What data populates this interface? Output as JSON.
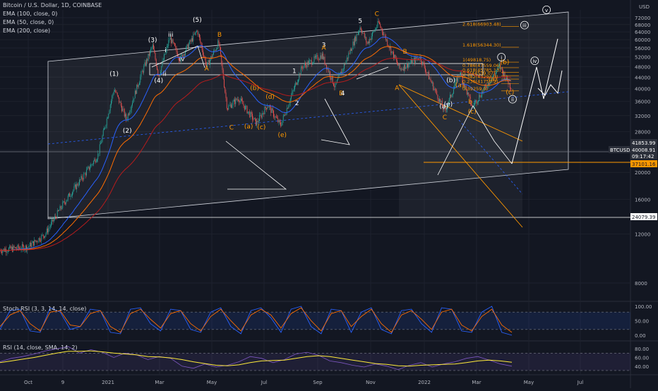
{
  "header": {
    "symbol_line": "Bitcoin / U.S. Dollar, 1D, COINBASE",
    "indicators": [
      "EMA (100, close, 0)",
      "EMA (50, close, 0)",
      "EMA (200, close)"
    ]
  },
  "colors": {
    "background": "#131722",
    "grid": "#1e222d",
    "axis_text": "#b2b5be",
    "up_candle": "#26a69a",
    "down_candle": "#ef5350",
    "ema50": "#2962ff",
    "ema100": "#ff6d00",
    "ema200": "#b71c1c",
    "wave_orange": "#ff9800",
    "wave_white": "#ffffff",
    "stoch_k": "#2962ff",
    "stoch_d": "#ff6d00",
    "rsi_line": "#7e57c2",
    "rsi_sma": "#ffeb3b"
  },
  "chart_data": [
    {
      "type": "candlestick",
      "series_name": "BTCUSD",
      "y_axis_unit": "USD",
      "y_log_scale": true,
      "y_ticks": [
        72000,
        68000,
        64000,
        60000,
        56000,
        52000,
        48000,
        44000,
        40000,
        36000,
        32000,
        28000,
        24000,
        20000,
        16000,
        12000,
        8000
      ],
      "x_tick_labels": [
        "Oct",
        "9",
        "2021",
        "Mar",
        "May",
        "Jul",
        "Sep",
        "Nov",
        "2022",
        "Mar",
        "May",
        "Jul"
      ],
      "price_path": [
        [
          "2020-09-01",
          10500
        ],
        [
          "2020-10-01",
          10800
        ],
        [
          "2020-10-20",
          12000
        ],
        [
          "2020-11-10",
          15500
        ],
        [
          "2020-12-01",
          19000
        ],
        [
          "2020-12-20",
          23000
        ],
        [
          "2021-01-08",
          40000
        ],
        [
          "2021-01-22",
          31000
        ],
        [
          "2021-02-08",
          45000
        ],
        [
          "2021-02-21",
          57000
        ],
        [
          "2021-02-28",
          44500
        ],
        [
          "2021-03-13",
          61000
        ],
        [
          "2021-03-25",
          51000
        ],
        [
          "2021-04-14",
          64800
        ],
        [
          "2021-04-25",
          48000
        ],
        [
          "2021-05-09",
          58800
        ],
        [
          "2021-05-19",
          34000
        ],
        [
          "2021-06-01",
          37000
        ],
        [
          "2021-06-22",
          30000
        ],
        [
          "2021-07-05",
          35000
        ],
        [
          "2021-07-20",
          29500
        ],
        [
          "2021-08-14",
          48000
        ],
        [
          "2021-09-06",
          52800
        ],
        [
          "2021-09-21",
          40500
        ],
        [
          "2021-10-20",
          66900
        ],
        [
          "2021-10-28",
          58000
        ],
        [
          "2021-11-10",
          69000
        ],
        [
          "2021-12-04",
          47000
        ],
        [
          "2021-12-27",
          51900
        ],
        [
          "2022-01-24",
          33000
        ],
        [
          "2022-02-10",
          45800
        ],
        [
          "2022-02-24",
          34400
        ],
        [
          "2022-03-28",
          48200
        ],
        [
          "2022-04-11",
          40008
        ]
      ],
      "price_labels": [
        {
          "value": "41853.99",
          "color": "#2a2e39"
        },
        {
          "value": "40008.91",
          "color": "#2a2e39"
        },
        {
          "value": "BTCUSD",
          "color": "#2a2e39"
        },
        {
          "value": "09:17:42",
          "color": "#2a2e39"
        },
        {
          "value": "37101.16",
          "color": "#ff9800"
        },
        {
          "value": "24079.39",
          "color": "#ffffff"
        }
      ],
      "wave_labels": [
        {
          "text": "(1)",
          "date": "2021-01-08",
          "price": 44500,
          "color": "#ffffff"
        },
        {
          "text": "(2)",
          "date": "2021-01-23",
          "price": 27800,
          "color": "#ffffff"
        },
        {
          "text": "(3)",
          "date": "2021-02-21",
          "price": 58800,
          "color": "#ffffff"
        },
        {
          "text": "(4)",
          "date": "2021-02-28",
          "price": 42000,
          "color": "#ffffff"
        },
        {
          "text": "(5)",
          "date": "2021-04-14",
          "price": 69500,
          "color": "#ffffff"
        },
        {
          "text": "iii",
          "date": "2021-03-14",
          "price": 61500,
          "color": "#ffffff"
        },
        {
          "text": "i",
          "date": "2021-03-08",
          "price": 54000,
          "color": "#ffffff"
        },
        {
          "text": "ii",
          "date": "2021-03-07",
          "price": 44500,
          "color": "#ffffff"
        },
        {
          "text": "iv",
          "date": "2021-03-27",
          "price": 50300,
          "color": "#ffffff"
        },
        {
          "text": "B",
          "date": "2021-05-10",
          "price": 61500,
          "color": "#ff9800"
        },
        {
          "text": "A",
          "date": "2021-04-25",
          "price": 46500,
          "color": "#ff9800"
        },
        {
          "text": "C",
          "date": "2021-05-24",
          "price": 28500,
          "color": "#ff9800"
        },
        {
          "text": "(a)",
          "date": "2021-06-13",
          "price": 28800,
          "color": "#ff9800"
        },
        {
          "text": "(b)",
          "date": "2021-06-20",
          "price": 39500,
          "color": "#ff9800"
        },
        {
          "text": "(c)",
          "date": "2021-06-28",
          "price": 28600,
          "color": "#ff9800"
        },
        {
          "text": "(d)",
          "date": "2021-07-08",
          "price": 36800,
          "color": "#ff9800"
        },
        {
          "text": "(e)",
          "date": "2021-07-22",
          "price": 26800,
          "color": "#ff9800"
        },
        {
          "text": "1",
          "date": "2021-08-05",
          "price": 45500,
          "color": "#ffffff"
        },
        {
          "text": "2",
          "date": "2021-08-08",
          "price": 34900,
          "color": "#ffffff"
        },
        {
          "text": "3",
          "date": "2021-09-08",
          "price": 56500,
          "color": "#ffffff"
        },
        {
          "text": "A",
          "date": "2021-09-08",
          "price": 55200,
          "color": "#ff9800"
        },
        {
          "text": "B",
          "date": "2021-09-28",
          "price": 37900,
          "color": "#ff9800"
        },
        {
          "text": "4",
          "date": "2021-09-30",
          "price": 37900,
          "color": "#ffffff"
        },
        {
          "text": "5",
          "date": "2021-10-20",
          "price": 69000,
          "color": "#ffffff"
        },
        {
          "text": "C",
          "date": "2021-11-08",
          "price": 73000,
          "color": "#ff9800"
        },
        {
          "text": "B",
          "date": "2021-12-10",
          "price": 53500,
          "color": "#ff9800"
        },
        {
          "text": "A",
          "date": "2021-12-01",
          "price": 39500,
          "color": "#ff9800"
        },
        {
          "text": "C",
          "date": "2022-01-24",
          "price": 31000,
          "color": "#ff9800"
        },
        {
          "text": "(a)",
          "date": "2022-01-23",
          "price": 34000,
          "color": "#ffffff"
        },
        {
          "text": "(e)",
          "date": "2022-01-28",
          "price": 34600,
          "color": "#ffffff"
        },
        {
          "text": "(a)",
          "date": "2022-02-10",
          "price": 40500,
          "color": "#ff9800"
        },
        {
          "text": "(b)",
          "date": "2022-01-31",
          "price": 42200,
          "color": "#ffffff"
        },
        {
          "text": "b",
          "date": "2022-02-22",
          "price": 35300,
          "color": "#ff9800"
        },
        {
          "text": "(c)",
          "date": "2022-02-24",
          "price": 32500,
          "color": "#ff9800"
        },
        {
          "text": "(a)",
          "date": "2022-03-20",
          "price": 42500,
          "color": "#ff9800"
        },
        {
          "text": "(c)",
          "date": "2022-04-09",
          "price": 38200,
          "color": "#ff9800"
        },
        {
          "text": "(b)",
          "date": "2022-04-03",
          "price": 49000,
          "color": "#ff9800"
        },
        {
          "text": "i",
          "date": "2022-03-30",
          "price": 51000,
          "color": "#ffffff",
          "circled": true
        },
        {
          "text": "ii",
          "date": "2022-04-12",
          "price": 36000,
          "color": "#ffffff",
          "circled": true
        },
        {
          "text": "iii",
          "date": "2022-04-26",
          "price": 66500,
          "color": "#ffffff",
          "circled": true
        },
        {
          "text": "iv",
          "date": "2022-05-08",
          "price": 49500,
          "color": "#ffffff",
          "circled": true
        },
        {
          "text": "v",
          "date": "2022-05-22",
          "price": 75500,
          "color": "#ffffff",
          "circled": true
        }
      ],
      "fib_levels": [
        {
          "label": "2.618(66903.48)",
          "price": 66903
        },
        {
          "label": "1.618(56344.30)",
          "price": 56344
        },
        {
          "label": "1(49818.75)",
          "price": 49819
        },
        {
          "label": "0.786(47559.06)",
          "price": 47559
        },
        {
          "label": "0.618(45785.13)",
          "price": 45785
        },
        {
          "label": "0.5(44539.07)",
          "price": 44539
        },
        {
          "label": "0.382(43293.0)",
          "price": 43293
        },
        {
          "label": "0.236(41750.2)",
          "price": 41750
        },
        {
          "label": "0(39259.0)",
          "price": 39259
        }
      ]
    },
    {
      "type": "line",
      "title": "Stoch RSI (3, 3, 14, 14, close)",
      "y_ticks": [
        100.0,
        50.0,
        0.0
      ],
      "ylim": [
        0,
        100
      ],
      "bands": [
        80,
        20
      ],
      "series": [
        {
          "name": "K",
          "values": [
            20,
            85,
            90,
            15,
            10,
            95,
            80,
            20,
            30,
            90,
            85,
            10,
            5,
            90,
            95,
            40,
            15,
            90,
            85,
            20,
            10,
            80,
            95,
            30,
            5,
            85,
            95,
            60,
            10,
            90,
            100,
            30,
            5,
            90,
            85,
            10,
            80,
            95,
            20,
            5,
            85,
            90,
            40,
            10,
            95,
            90,
            15,
            10,
            80,
            100,
            10,
            0
          ]
        },
        {
          "name": "D",
          "values": [
            30,
            70,
            85,
            40,
            15,
            80,
            85,
            35,
            30,
            75,
            85,
            30,
            10,
            75,
            90,
            55,
            25,
            75,
            85,
            40,
            15,
            65,
            90,
            50,
            15,
            70,
            90,
            70,
            25,
            75,
            95,
            50,
            15,
            75,
            85,
            30,
            65,
            90,
            40,
            10,
            70,
            85,
            55,
            20,
            80,
            90,
            35,
            15,
            65,
            90,
            35,
            10
          ]
        }
      ]
    },
    {
      "type": "line",
      "title": "RSI (14, close, SMA, 14, 2)",
      "y_ticks": [
        80.0,
        60.0,
        40.0
      ],
      "ylim": [
        25,
        90
      ],
      "bands": [
        70,
        30
      ],
      "series": [
        {
          "name": "RSI",
          "values": [
            50,
            58,
            62,
            68,
            75,
            80,
            85,
            70,
            78,
            72,
            60,
            70,
            66,
            55,
            62,
            58,
            40,
            35,
            45,
            38,
            42,
            50,
            62,
            58,
            48,
            55,
            68,
            72,
            65,
            52,
            48,
            42,
            38,
            45,
            40,
            32,
            42,
            48,
            38,
            45,
            50,
            58,
            62,
            54,
            45,
            40
          ]
        },
        {
          "name": "SMA",
          "values": [
            48,
            52,
            56,
            60,
            65,
            70,
            74,
            74,
            75,
            73,
            70,
            68,
            66,
            62,
            61,
            59,
            55,
            50,
            46,
            42,
            41,
            43,
            48,
            52,
            53,
            54,
            58,
            62,
            64,
            62,
            58,
            54,
            50,
            46,
            44,
            41,
            40,
            42,
            43,
            44,
            45,
            48,
            52,
            54,
            52,
            49
          ]
        }
      ]
    }
  ]
}
